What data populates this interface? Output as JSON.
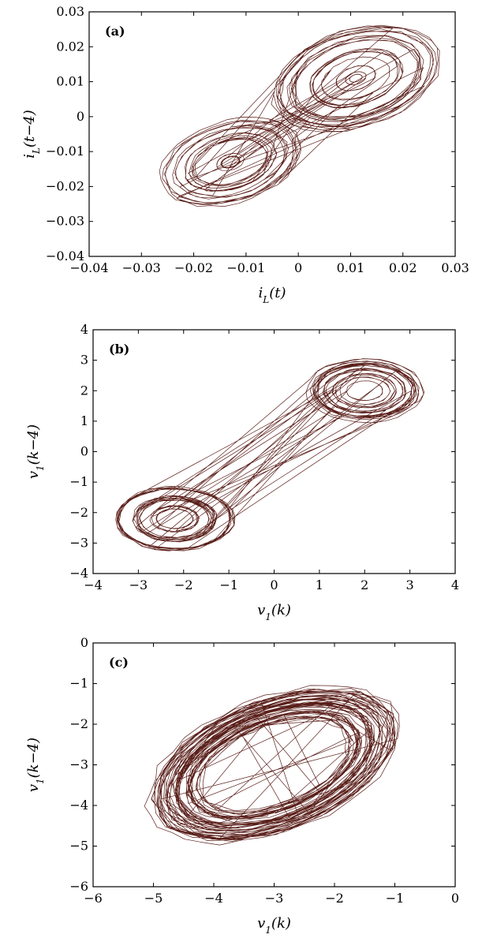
{
  "chart_data": [
    {
      "type": "line",
      "panel_tag": "(a)",
      "xlabel_main": "i",
      "xlabel_sub": "L",
      "xlabel_arg": "(t)",
      "ylabel_main": "i",
      "ylabel_sub": "L",
      "ylabel_arg": "(t−4)",
      "xlim": [
        -0.04,
        0.03
      ],
      "ylim": [
        -0.04,
        0.03
      ],
      "xticks": [
        -0.04,
        -0.03,
        -0.02,
        -0.01,
        0,
        0.01,
        0.02,
        0.03
      ],
      "yticks": [
        -0.04,
        -0.03,
        -0.02,
        -0.01,
        0,
        0.01,
        0.02,
        0.03
      ],
      "xtick_labels": [
        "−0.04",
        "−0.03",
        "−0.02",
        "−0.01",
        "0",
        "0.01",
        "0.02",
        "0.03"
      ],
      "ytick_labels": [
        "−0.04",
        "−0.03",
        "−0.02",
        "−0.01",
        "0",
        "0.01",
        "0.02",
        "0.03"
      ],
      "attractor": {
        "shape": "double-scroll",
        "centers": [
          [
            0.011,
            0.011
          ],
          [
            -0.013,
            -0.013
          ]
        ],
        "radius_range": [
          0.001,
          0.018
        ],
        "tilt_degrees": 40,
        "x_range": [
          -0.032,
          0.028
        ],
        "y_range": [
          -0.032,
          0.028
        ]
      },
      "color": "#5a1f1a"
    },
    {
      "type": "line",
      "panel_tag": "(b)",
      "xlabel_main": "v",
      "xlabel_sub": "1",
      "xlabel_arg": "(k)",
      "ylabel_main": "v",
      "ylabel_sub": "1",
      "ylabel_arg": "(k−4)",
      "xlim": [
        -4,
        4
      ],
      "ylim": [
        -4,
        4
      ],
      "xticks": [
        -4,
        -3,
        -2,
        -1,
        0,
        1,
        2,
        3,
        4
      ],
      "yticks": [
        -4,
        -3,
        -2,
        -1,
        0,
        1,
        2,
        3,
        4
      ],
      "xtick_labels": [
        "−4",
        "−3",
        "−2",
        "−1",
        "0",
        "1",
        "2",
        "3",
        "4"
      ],
      "ytick_labels": [
        "−4",
        "−3",
        "−2",
        "−1",
        "0",
        "1",
        "2",
        "3",
        "4"
      ],
      "attractor": {
        "shape": "double-scroll",
        "centers": [
          [
            2.0,
            2.0
          ],
          [
            -2.2,
            -2.2
          ]
        ],
        "radius_range": [
          0.3,
          1.35
        ],
        "tilt_degrees": 0,
        "x_range": [
          -3.5,
          3.4
        ],
        "y_range": [
          -3.5,
          3.4
        ]
      },
      "color": "#5a1f1a"
    },
    {
      "type": "line",
      "panel_tag": "(c)",
      "xlabel_main": "v",
      "xlabel_sub": "1",
      "xlabel_arg": "(k)",
      "ylabel_main": "v",
      "ylabel_sub": "1",
      "ylabel_arg": "(k−4)",
      "xlim": [
        -6,
        0
      ],
      "ylim": [
        -6,
        0
      ],
      "xticks": [
        -6,
        -5,
        -4,
        -3,
        -2,
        -1,
        0
      ],
      "yticks": [
        -6,
        -5,
        -4,
        -3,
        -2,
        -1,
        0
      ],
      "xtick_labels": [
        "−6",
        "−5",
        "−4",
        "−3",
        "−2",
        "−1",
        "0"
      ],
      "ytick_labels": [
        "−6",
        "−5",
        "−4",
        "−3",
        "−2",
        "−1",
        "0"
      ],
      "attractor": {
        "shape": "single-loop-band",
        "center": [
          -3.0,
          -3.0
        ],
        "radius_range": [
          1.4,
          2.6
        ],
        "tilt_degrees": 40,
        "x_range": [
          -5.8,
          -0.3
        ],
        "y_range": [
          -5.7,
          -0.2
        ]
      },
      "color": "#5a1f1a"
    }
  ]
}
